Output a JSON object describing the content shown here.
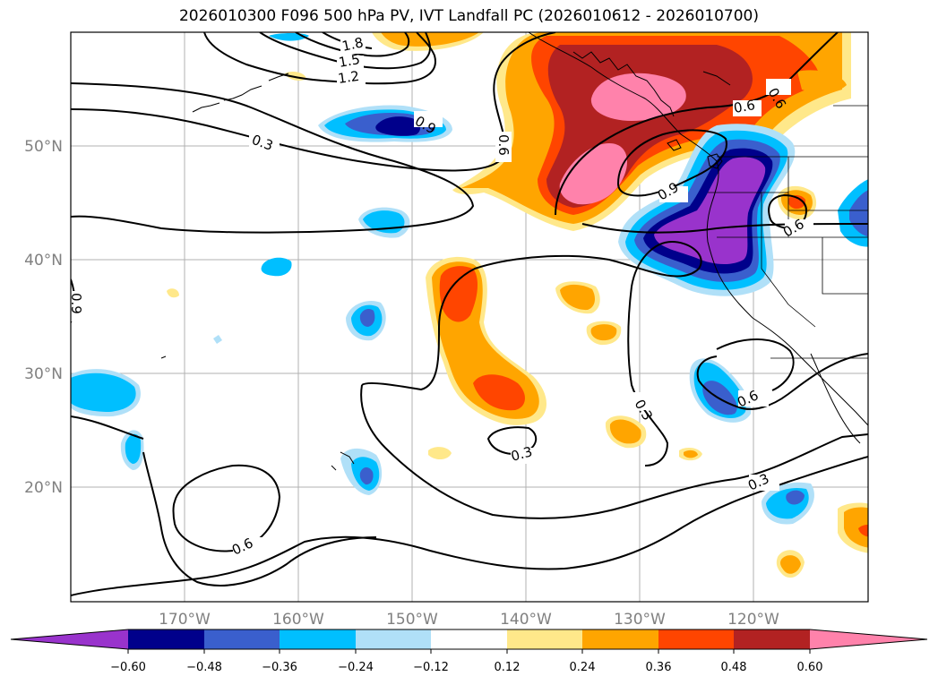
{
  "title": "2026010300 F096 500 hPa PV, IVT Landfall PC (2026010612 - 2026010700)",
  "map": {
    "lon_labels": [
      "170°W",
      "160°W",
      "150°W",
      "140°W",
      "130°W",
      "120°W"
    ],
    "lat_labels": [
      "50°N",
      "40°N",
      "30°N",
      "20°N"
    ],
    "contour_labels": [
      "1.8",
      "1.5",
      "1.2",
      "0.9",
      "0.9",
      "0.6",
      "0.6",
      "0.6",
      "0.6",
      "0.3",
      "0.3",
      "0.3",
      "0.3",
      "0.6",
      "0.9",
      "0.6"
    ]
  },
  "colorbar": {
    "ticks": [
      "−0.60",
      "−0.48",
      "−0.36",
      "−0.24",
      "−0.12",
      "0.12",
      "0.24",
      "0.36",
      "0.48",
      "0.60"
    ],
    "colors": [
      "#9933cc",
      "#00008b",
      "#3a5fcd",
      "#00bfff",
      "#b0e0f8",
      "#ffffff",
      "#ffe88a",
      "#ffa500",
      "#ff4500",
      "#b22222",
      "#ff82ab"
    ]
  }
}
